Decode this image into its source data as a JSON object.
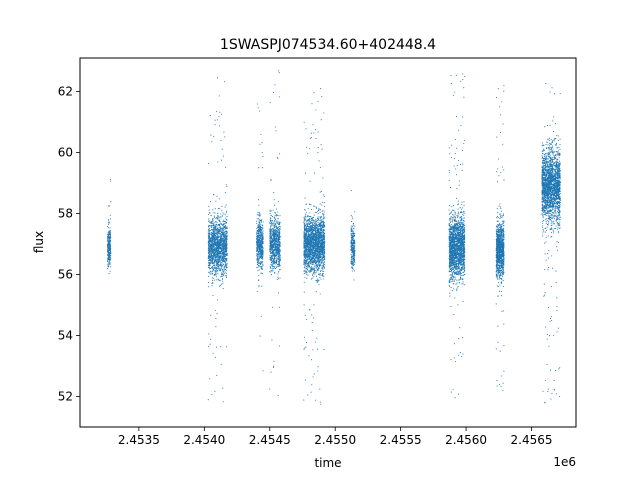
{
  "chart_data": {
    "type": "scatter",
    "title": "1SWASPJ074534.60+402448.4",
    "xlabel": "time",
    "ylabel": "flux",
    "x_offset_label": "1e6",
    "xlim": [
      2453050,
      2456840
    ],
    "ylim": [
      51.0,
      63.1
    ],
    "x_ticks": [
      2453500,
      2454000,
      2454500,
      2455000,
      2455500,
      2456000,
      2456500
    ],
    "x_tick_labels": [
      "2.4535",
      "2.4540",
      "2.4545",
      "2.4550",
      "2.4555",
      "2.4560",
      "2.4565"
    ],
    "y_ticks": [
      52,
      54,
      56,
      58,
      60,
      62
    ],
    "y_tick_labels": [
      "52",
      "54",
      "56",
      "58",
      "60",
      "62"
    ],
    "grid": false,
    "marker_color": "#1f77b4",
    "marker": "tiny dots",
    "observing_seasons": [
      {
        "x_start": 2453260,
        "x_end": 2453285,
        "center_flux": 56.9,
        "spread": 0.35,
        "y_min": 55.8,
        "y_max": 59.6,
        "weight": 1
      },
      {
        "x_start": 2454030,
        "x_end": 2454175,
        "center_flux": 56.9,
        "spread": 0.45,
        "y_min": 51.6,
        "y_max": 62.7,
        "weight": 6
      },
      {
        "x_start": 2454400,
        "x_end": 2454450,
        "center_flux": 57.0,
        "spread": 0.4,
        "y_min": 52.5,
        "y_max": 62.0,
        "weight": 2
      },
      {
        "x_start": 2454500,
        "x_end": 2454580,
        "center_flux": 57.0,
        "spread": 0.4,
        "y_min": 52.0,
        "y_max": 62.8,
        "weight": 3
      },
      {
        "x_start": 2454760,
        "x_end": 2454920,
        "center_flux": 57.0,
        "spread": 0.45,
        "y_min": 51.6,
        "y_max": 62.2,
        "weight": 8
      },
      {
        "x_start": 2455120,
        "x_end": 2455150,
        "center_flux": 56.9,
        "spread": 0.35,
        "y_min": 55.5,
        "y_max": 58.8,
        "weight": 1
      },
      {
        "x_start": 2455870,
        "x_end": 2455990,
        "center_flux": 56.9,
        "spread": 0.5,
        "y_min": 51.8,
        "y_max": 62.8,
        "weight": 7
      },
      {
        "x_start": 2456230,
        "x_end": 2456290,
        "center_flux": 56.8,
        "spread": 0.45,
        "y_min": 52.2,
        "y_max": 62.2,
        "weight": 4
      },
      {
        "x_start": 2456580,
        "x_end": 2456720,
        "center_flux": 58.9,
        "spread": 0.6,
        "y_min": 51.6,
        "y_max": 62.7,
        "weight": 8
      }
    ]
  }
}
